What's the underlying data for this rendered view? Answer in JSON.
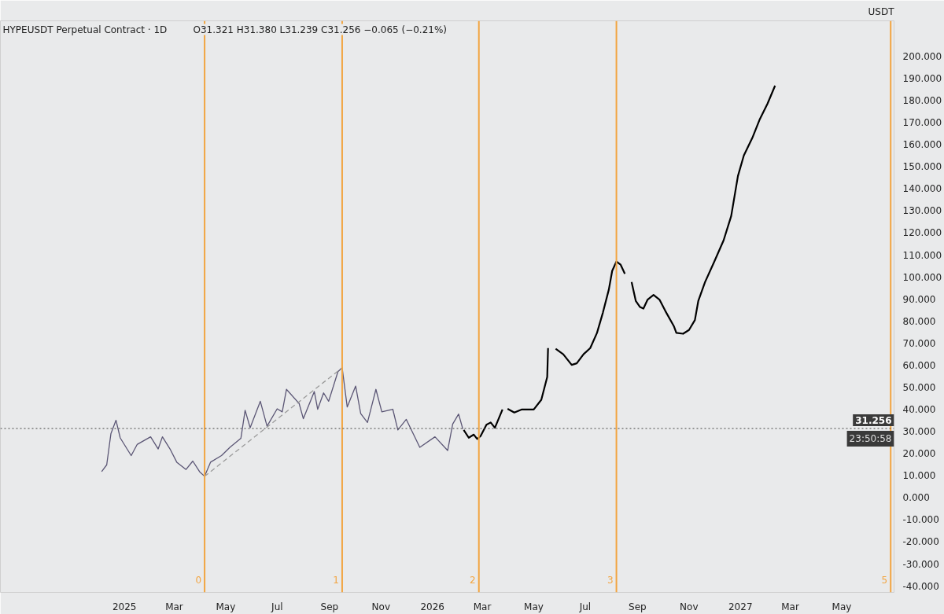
{
  "chart_data": {
    "type": "line",
    "title": "HYPEUSDT Perpetual Contract · 1D",
    "subtitle": "O31.321 H31.380 L31.239 C31.256 −0.065 (−0.21%)",
    "ylabel": "USDT",
    "xlim": [
      "2024-08-07",
      "2027-07-02"
    ],
    "ylim": [
      -43,
      216
    ],
    "xticks": [
      {
        "value": "2025-01-01",
        "label": "2025"
      },
      {
        "value": "2025-03-01",
        "label": "Mar"
      },
      {
        "value": "2025-05-01",
        "label": "May"
      },
      {
        "value": "2025-07-01",
        "label": "Jul"
      },
      {
        "value": "2025-09-01",
        "label": "Sep"
      },
      {
        "value": "2025-11-01",
        "label": "Nov"
      },
      {
        "value": "2026-01-01",
        "label": "2026"
      },
      {
        "value": "2026-03-01",
        "label": "Mar"
      },
      {
        "value": "2026-05-01",
        "label": "May"
      },
      {
        "value": "2026-07-01",
        "label": "Jul"
      },
      {
        "value": "2026-09-01",
        "label": "Sep"
      },
      {
        "value": "2026-11-01",
        "label": "Nov"
      },
      {
        "value": "2027-01-01",
        "label": "2027"
      },
      {
        "value": "2027-03-01",
        "label": "Mar"
      },
      {
        "value": "2027-05-01",
        "label": "May"
      }
    ],
    "yticks": [
      {
        "value": -40,
        "label": "-40.000"
      },
      {
        "value": -30,
        "label": "-30.000"
      },
      {
        "value": -20,
        "label": "-20.000"
      },
      {
        "value": -10,
        "label": "-10.000"
      },
      {
        "value": 0,
        "label": "0.000"
      },
      {
        "value": 10,
        "label": "10.000"
      },
      {
        "value": 20,
        "label": "20.000"
      },
      {
        "value": 30,
        "label": "30.000"
      },
      {
        "value": 40,
        "label": "40.000"
      },
      {
        "value": 50,
        "label": "50.000"
      },
      {
        "value": 60,
        "label": "60.000"
      },
      {
        "value": 70,
        "label": "70.000"
      },
      {
        "value": 80,
        "label": "80.000"
      },
      {
        "value": 90,
        "label": "90.000"
      },
      {
        "value": 100,
        "label": "100.000"
      },
      {
        "value": 110,
        "label": "110.000"
      },
      {
        "value": 120,
        "label": "120.000"
      },
      {
        "value": 130,
        "label": "130.000"
      },
      {
        "value": 140,
        "label": "140.000"
      },
      {
        "value": 150,
        "label": "150.000"
      },
      {
        "value": 160,
        "label": "160.000"
      },
      {
        "value": 170,
        "label": "170.000"
      },
      {
        "value": 180,
        "label": "180.000"
      },
      {
        "value": 190,
        "label": "190.000"
      },
      {
        "value": 200,
        "label": "200.000"
      }
    ],
    "grid": false,
    "marker": "none",
    "series": [
      {
        "color": "#5b5675",
        "line_style": "solid",
        "x": [
          "2024-12-05",
          "2024-12-11",
          "2024-12-16",
          "2024-12-22",
          "2024-12-27",
          "2025-01-09",
          "2025-01-16",
          "2025-02-01",
          "2025-02-10",
          "2025-02-15",
          "2025-02-24",
          "2025-03-04",
          "2025-03-15",
          "2025-03-23",
          "2025-03-31",
          "2025-04-06",
          "2025-04-13",
          "2025-04-26",
          "2025-05-06",
          "2025-05-19",
          "2025-05-24",
          "2025-05-30",
          "2025-06-11",
          "2025-06-19",
          "2025-07-01",
          "2025-07-07",
          "2025-07-12",
          "2025-07-27",
          "2025-08-01",
          "2025-08-14",
          "2025-08-18",
          "2025-08-25",
          "2025-08-31",
          "2025-09-11",
          "2025-09-16",
          "2025-09-22",
          "2025-10-02",
          "2025-10-08",
          "2025-10-16",
          "2025-10-26",
          "2025-11-02",
          "2025-11-15",
          "2025-11-21",
          "2025-12-01",
          "2025-12-17",
          "2026-01-04",
          "2026-01-19",
          "2026-01-25",
          "2026-02-01",
          "2026-02-06"
        ],
        "values": [
          11.7,
          14.8,
          29,
          35,
          27,
          19,
          24,
          27.5,
          22,
          27.5,
          22,
          16,
          12.7,
          16.5,
          11.7,
          9.6,
          16,
          19,
          22.7,
          26.8,
          39.5,
          31.6,
          43.6,
          32.3,
          40.2,
          38.8,
          49,
          42.6,
          35.7,
          48,
          40,
          47.4,
          43.6,
          57,
          58.8,
          41,
          50.5,
          38,
          34,
          49,
          38.8,
          40,
          30.6,
          35.4,
          22.7,
          27.5,
          21.3,
          33.3,
          37.8,
          31
        ]
      },
      {
        "color": "#9a9a9a",
        "line_style": "dashed",
        "x": [
          "2025-04-06",
          "2025-09-16"
        ],
        "values": [
          9.6,
          58.8
        ]
      },
      {
        "color": "#000000",
        "line_style": "solid",
        "x": [
          "2026-02-07",
          "2026-02-13",
          "2026-02-19",
          "2026-02-23",
          "2026-02-27",
          "2026-03-06",
          "2026-03-11",
          "2026-03-16",
          "2026-03-25",
          "2026-03-29",
          "2026-03-31",
          "2026-04-08",
          "2026-04-17",
          "2026-05-01",
          "2026-05-10",
          "2026-05-17",
          "2026-05-18",
          "2026-05-23",
          "2026-05-27",
          "2026-06-05",
          "2026-06-15",
          "2026-06-21",
          "2026-06-29",
          "2026-07-07",
          "2026-07-15",
          "2026-07-22",
          "2026-07-29",
          "2026-08-02",
          "2026-08-07",
          "2026-08-12",
          "2026-08-17",
          "2026-08-21",
          "2026-08-25",
          "2026-08-30",
          "2026-09-04",
          "2026-09-08",
          "2026-09-13",
          "2026-09-20",
          "2026-09-27",
          "2026-10-04",
          "2026-10-14",
          "2026-10-17",
          "2026-10-25",
          "2026-11-01",
          "2026-11-08",
          "2026-11-12",
          "2026-11-20",
          "2026-12-01",
          "2026-12-12",
          "2026-12-21",
          "2026-12-29",
          "2027-01-05",
          "2027-01-15",
          "2027-01-24",
          "2027-02-02",
          "2027-02-11"
        ],
        "values": [
          30.6,
          27.1,
          28.5,
          26.5,
          27.8,
          33,
          34,
          31.6,
          39.9,
          null,
          40.2,
          38.5,
          39.9,
          39.9,
          44.3,
          54.6,
          67.7,
          null,
          67.4,
          64.9,
          60.1,
          60.8,
          64.9,
          67.7,
          74.6,
          83.8,
          94.2,
          102.7,
          106.9,
          105.5,
          101.4,
          null,
          97.6,
          89,
          86.3,
          85.6,
          89.7,
          91.8,
          89.7,
          84.5,
          77.7,
          74.6,
          74.2,
          75.9,
          80.4,
          89,
          97.6,
          106.9,
          116.5,
          127.5,
          145.7,
          155,
          162.9,
          171.5,
          178.4,
          186.6
        ]
      }
    ],
    "ref_lines": [
      {
        "axis": "x",
        "value": "2025-04-06",
        "label": "0",
        "color": "#f2a541",
        "line_style": "solid"
      },
      {
        "axis": "x",
        "value": "2025-09-16",
        "label": "1",
        "color": "#f2a541",
        "line_style": "solid"
      },
      {
        "axis": "x",
        "value": "2026-02-25",
        "label": "2",
        "color": "#f2a541",
        "line_style": "solid"
      },
      {
        "axis": "x",
        "value": "2026-08-07",
        "label": "3",
        "color": "#f2a541",
        "line_style": "solid"
      },
      {
        "axis": "x",
        "value": "2027-06-28",
        "label": "5",
        "color": "#f2a541",
        "line_style": "solid"
      },
      {
        "axis": "y",
        "value": 31.256,
        "label": "31.256",
        "color": "#444444",
        "line_style": "dotted"
      }
    ],
    "annotations": [
      "23:50:58"
    ]
  }
}
